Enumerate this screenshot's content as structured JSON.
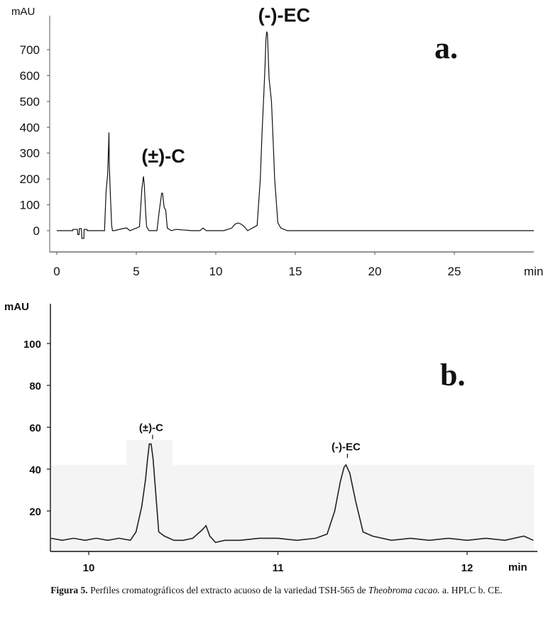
{
  "chart_data": [
    {
      "type": "line",
      "panel": "a.",
      "ylabel": "mAU",
      "xunit": "min",
      "xlim": [
        0,
        30
      ],
      "ylim": [
        -50,
        800
      ],
      "xticks": [
        0,
        5,
        10,
        15,
        20,
        25
      ],
      "yticks": [
        0,
        100,
        200,
        300,
        400,
        500,
        600,
        700
      ],
      "annotations": [
        {
          "text": "(±)-C",
          "x": 6.7,
          "y": 255
        },
        {
          "text": "(-)-EC",
          "x": 14.3,
          "y": 800
        }
      ],
      "series": [
        {
          "x": [
            0,
            1.0,
            1.02,
            1.3,
            1.32,
            1.4,
            1.42,
            1.55,
            1.57,
            1.7,
            1.72,
            1.9,
            1.92,
            3.0,
            3.1,
            3.2,
            3.28,
            3.3,
            3.36,
            3.45,
            3.5,
            3.6,
            4.3,
            4.4,
            4.6,
            4.8,
            5.0,
            5.2,
            5.35,
            5.45,
            5.5,
            5.6,
            5.65,
            5.8,
            6.3,
            6.45,
            6.6,
            6.65,
            6.75,
            6.85,
            6.95,
            7.2,
            7.5,
            8.5,
            9.0,
            9.2,
            9.4,
            10.5,
            11.0,
            11.2,
            11.4,
            11.6,
            11.8,
            12.0,
            12.6,
            12.8,
            12.9,
            13.0,
            13.1,
            13.15,
            13.2,
            13.25,
            13.35,
            13.5,
            13.6,
            13.7,
            13.9,
            14.1,
            14.5,
            30
          ],
          "y": [
            0,
            0,
            5,
            5,
            -15,
            -15,
            8,
            8,
            -30,
            -30,
            5,
            5,
            0,
            0,
            150,
            220,
            380,
            260,
            150,
            20,
            0,
            0,
            10,
            10,
            0,
            5,
            10,
            15,
            160,
            210,
            180,
            60,
            15,
            0,
            0,
            80,
            145,
            145,
            90,
            80,
            10,
            0,
            5,
            0,
            0,
            10,
            0,
            0,
            10,
            25,
            30,
            25,
            15,
            0,
            20,
            200,
            370,
            500,
            640,
            740,
            770,
            760,
            590,
            500,
            360,
            200,
            30,
            10,
            0,
            0
          ]
        }
      ]
    },
    {
      "type": "line",
      "panel": "b.",
      "ylabel": "mAU",
      "xunit": "min",
      "xlim": [
        9.8,
        12.35
      ],
      "ylim": [
        2,
        112
      ],
      "xticks": [
        10,
        11,
        12
      ],
      "yticks": [
        20,
        40,
        60,
        80,
        100
      ],
      "annotations": [
        {
          "text": "(±)-C",
          "x": 10.33,
          "y": 54
        },
        {
          "text": "(-)-EC",
          "x": 11.36,
          "y": 45
        }
      ],
      "series": [
        {
          "x": [
            9.8,
            9.86,
            9.92,
            9.98,
            10.04,
            10.1,
            10.16,
            10.22,
            10.25,
            10.28,
            10.3,
            10.31,
            10.32,
            10.33,
            10.34,
            10.36,
            10.37,
            10.4,
            10.45,
            10.5,
            10.55,
            10.6,
            10.62,
            10.64,
            10.67,
            10.72,
            10.8,
            10.9,
            11.0,
            11.1,
            11.2,
            11.26,
            11.3,
            11.33,
            11.35,
            11.36,
            11.38,
            11.41,
            11.45,
            11.5,
            11.6,
            11.7,
            11.8,
            11.9,
            12.0,
            12.1,
            12.2,
            12.3,
            12.35
          ],
          "y": [
            7,
            6,
            7,
            6,
            7,
            6,
            7,
            6,
            10,
            22,
            35,
            44,
            52,
            52,
            45,
            22,
            10,
            8,
            6,
            6,
            7,
            11,
            13,
            8,
            5,
            6,
            6,
            7,
            7,
            6,
            7,
            9,
            20,
            34,
            41,
            42,
            38,
            25,
            10,
            8,
            6,
            7,
            6,
            7,
            6,
            7,
            6,
            8,
            6
          ]
        }
      ]
    }
  ],
  "caption": {
    "label": "Figura 5.",
    "text": "Perfiles cromatográficos del extracto acuoso de la variedad TSH-565 de",
    "species": "Theobroma cacao.",
    "tail": "a. HPLC b. CE."
  }
}
